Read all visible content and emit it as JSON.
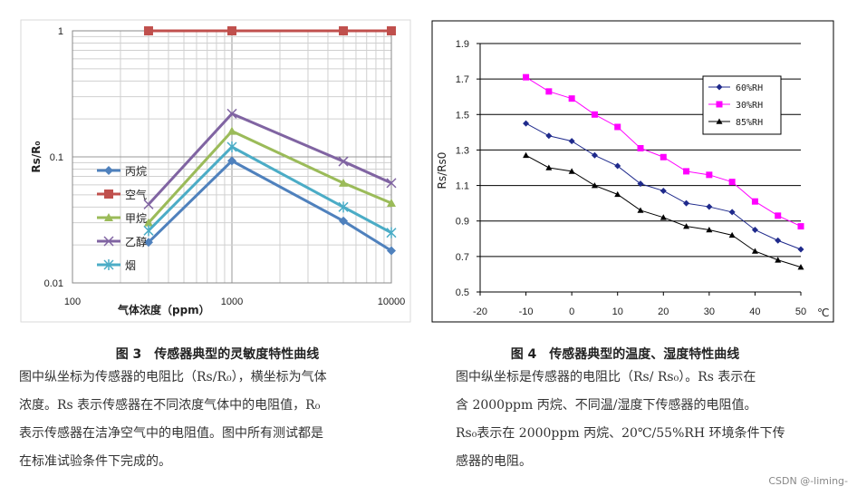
{
  "chart_data": [
    {
      "type": "line",
      "xscale": "log",
      "yscale": "log",
      "xlabel": "气体浓度（ppm）",
      "ylabel": "Rs/R₀",
      "xlim": [
        100,
        10000
      ],
      "ylim": [
        0.01,
        1
      ],
      "x_ticks": [
        "100",
        "1000",
        "10000"
      ],
      "y_ticks": [
        "0.01",
        "0.1",
        "1"
      ],
      "grid": true,
      "legend": "left",
      "series": [
        {
          "name": "丙烷",
          "color": "#4F81BD",
          "marker": "diamond",
          "x": [
            300,
            1000,
            5000,
            10000
          ],
          "y": [
            0.021,
            0.093,
            0.031,
            0.018
          ]
        },
        {
          "name": "空气",
          "color": "#C0504D",
          "marker": "square",
          "x": [
            300,
            1000,
            5000,
            10000
          ],
          "y": [
            1,
            1,
            1,
            1
          ]
        },
        {
          "name": "甲烷",
          "color": "#9BBB59",
          "marker": "triangle",
          "x": [
            300,
            1000,
            5000,
            10000
          ],
          "y": [
            0.03,
            0.16,
            0.062,
            0.043
          ]
        },
        {
          "name": "乙醇",
          "color": "#8064A2",
          "marker": "x",
          "x": [
            300,
            1000,
            5000,
            10000
          ],
          "y": [
            0.042,
            0.22,
            0.092,
            0.062
          ]
        },
        {
          "name": "烟",
          "color": "#4BACC6",
          "marker": "star",
          "x": [
            300,
            1000,
            5000,
            10000
          ],
          "y": [
            0.026,
            0.12,
            0.04,
            0.025
          ]
        }
      ]
    },
    {
      "type": "line",
      "xlabel": "",
      "ylabel": "Rs/Rs0",
      "x_unit": "℃",
      "xlim": [
        -20,
        50
      ],
      "ylim": [
        0.5,
        1.9
      ],
      "x_ticks": [
        "-20",
        "-10",
        "0",
        "10",
        "20",
        "30",
        "40",
        "50"
      ],
      "y_ticks": [
        "0.5",
        "0.7",
        "0.9",
        "1.1",
        "1.3",
        "1.5",
        "1.7",
        "1.9"
      ],
      "grid": true,
      "legend": "top-right",
      "series": [
        {
          "name": "60%RH",
          "color": "#1F2A8C",
          "marker": "diamond",
          "x": [
            -10,
            -5,
            0,
            5,
            10,
            15,
            20,
            25,
            30,
            35,
            40,
            45,
            50
          ],
          "y": [
            1.45,
            1.38,
            1.35,
            1.27,
            1.21,
            1.11,
            1.07,
            1.0,
            0.98,
            0.95,
            0.85,
            0.79,
            0.74
          ]
        },
        {
          "name": "30%RH",
          "color": "#FF00FF",
          "marker": "square",
          "x": [
            -10,
            -5,
            0,
            5,
            10,
            15,
            20,
            25,
            30,
            35,
            40,
            45,
            50
          ],
          "y": [
            1.71,
            1.63,
            1.59,
            1.5,
            1.43,
            1.31,
            1.26,
            1.18,
            1.16,
            1.12,
            1.01,
            0.93,
            0.87
          ]
        },
        {
          "name": "85%RH",
          "color": "#000000",
          "marker": "triangle",
          "x": [
            -10,
            -5,
            0,
            5,
            10,
            15,
            20,
            25,
            30,
            35,
            40,
            45,
            50
          ],
          "y": [
            1.27,
            1.2,
            1.18,
            1.1,
            1.05,
            0.96,
            0.92,
            0.87,
            0.85,
            0.82,
            0.73,
            0.68,
            0.64
          ]
        }
      ]
    }
  ],
  "captions": {
    "left_title": "图 3　传感器典型的灵敏度特性曲线",
    "left_lines": [
      "图中纵坐标为传感器的电阻比（Rs/R₀），横坐标为气体",
      "浓度。Rs 表示传感器在不同浓度气体中的电阻值，R₀",
      "表示传感器在洁净空气中的电阻值。图中所有测试都是",
      "在标准试验条件下完成的。"
    ],
    "right_title": "图 4　传感器典型的温度、湿度特性曲线",
    "right_lines": [
      "图中纵坐标是传感器的电阻比（Rs/ Rs₀）。Rs 表示在",
      "含 2000ppm 丙烷、不同温/湿度下传感器的电阻值。",
      "Rs₀表示在 2000ppm 丙烷、20℃/55%RH 环境条件下传",
      "感器的电阻。"
    ]
  },
  "watermark": "CSDN @-liming-"
}
